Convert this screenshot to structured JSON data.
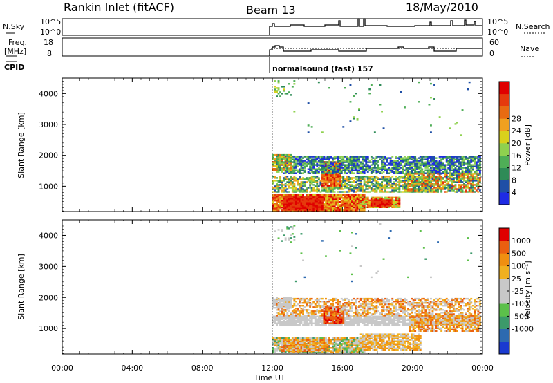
{
  "header": {
    "station": "Rankin Inlet (fitACF)",
    "beam": "Beam 13",
    "date": "18/May/2010"
  },
  "strips": {
    "nsky_label": "N.Sky",
    "nsky_ticks": [
      "10^5",
      "10^0"
    ],
    "nsearch_label": "N.Search",
    "freq_label_1": "Freq.",
    "freq_label_2": "[MHz]",
    "freq_ticks": [
      "18",
      "8"
    ],
    "nave_ticks": [
      "60",
      "0"
    ],
    "nave_label": "Nave",
    "cpid_label": "CPID",
    "cpid_value": "normalsound (fast) 157"
  },
  "colors": {
    "power": [
      "#1e2be5",
      "#1f4fa6",
      "#2e8b57",
      "#4fae57",
      "#8fd14f",
      "#d9d11c",
      "#f0a020",
      "#e86b12",
      "#e53a0d",
      "#e00000"
    ],
    "velocity": [
      "#1a3ad0",
      "#2d6ab0",
      "#3c9a6a",
      "#5cc04a",
      "#c8c8c8",
      "#c8c8c8",
      "#f0b020",
      "#f08f10",
      "#ea5f10",
      "#e00000"
    ]
  },
  "chart_data": [
    {
      "type": "heatmap",
      "name": "power",
      "title": "",
      "xlabel": "",
      "ylabel": "Slant Range [km]",
      "x_ticks": [
        "00:00",
        "04:00",
        "08:00",
        "12:00",
        "16:00",
        "20:00",
        "00:00"
      ],
      "xlim_hours": [
        0,
        24
      ],
      "y_ticks": [
        1000,
        2000,
        3000,
        4000
      ],
      "ylim": [
        180,
        4500
      ],
      "colorbar_label": "Power [dB]",
      "colorbar_ticks": [
        4,
        8,
        12,
        16,
        20,
        24,
        28
      ],
      "data_start_hour": 12
    },
    {
      "type": "heatmap",
      "name": "velocity",
      "title": "",
      "xlabel": "Time UT",
      "ylabel": "Slant Range [km]",
      "x_ticks": [
        "00:00",
        "04:00",
        "08:00",
        "12:00",
        "16:00",
        "20:00",
        "00:00"
      ],
      "xlim_hours": [
        0,
        24
      ],
      "y_ticks": [
        1000,
        2000,
        3000,
        4000
      ],
      "ylim": [
        180,
        4500
      ],
      "colorbar_label": "Velocity [m s⁻¹]",
      "colorbar_ticks": [
        1000,
        500,
        100,
        25,
        -25,
        -100,
        -500,
        -1000
      ],
      "data_start_hour": 12
    }
  ]
}
